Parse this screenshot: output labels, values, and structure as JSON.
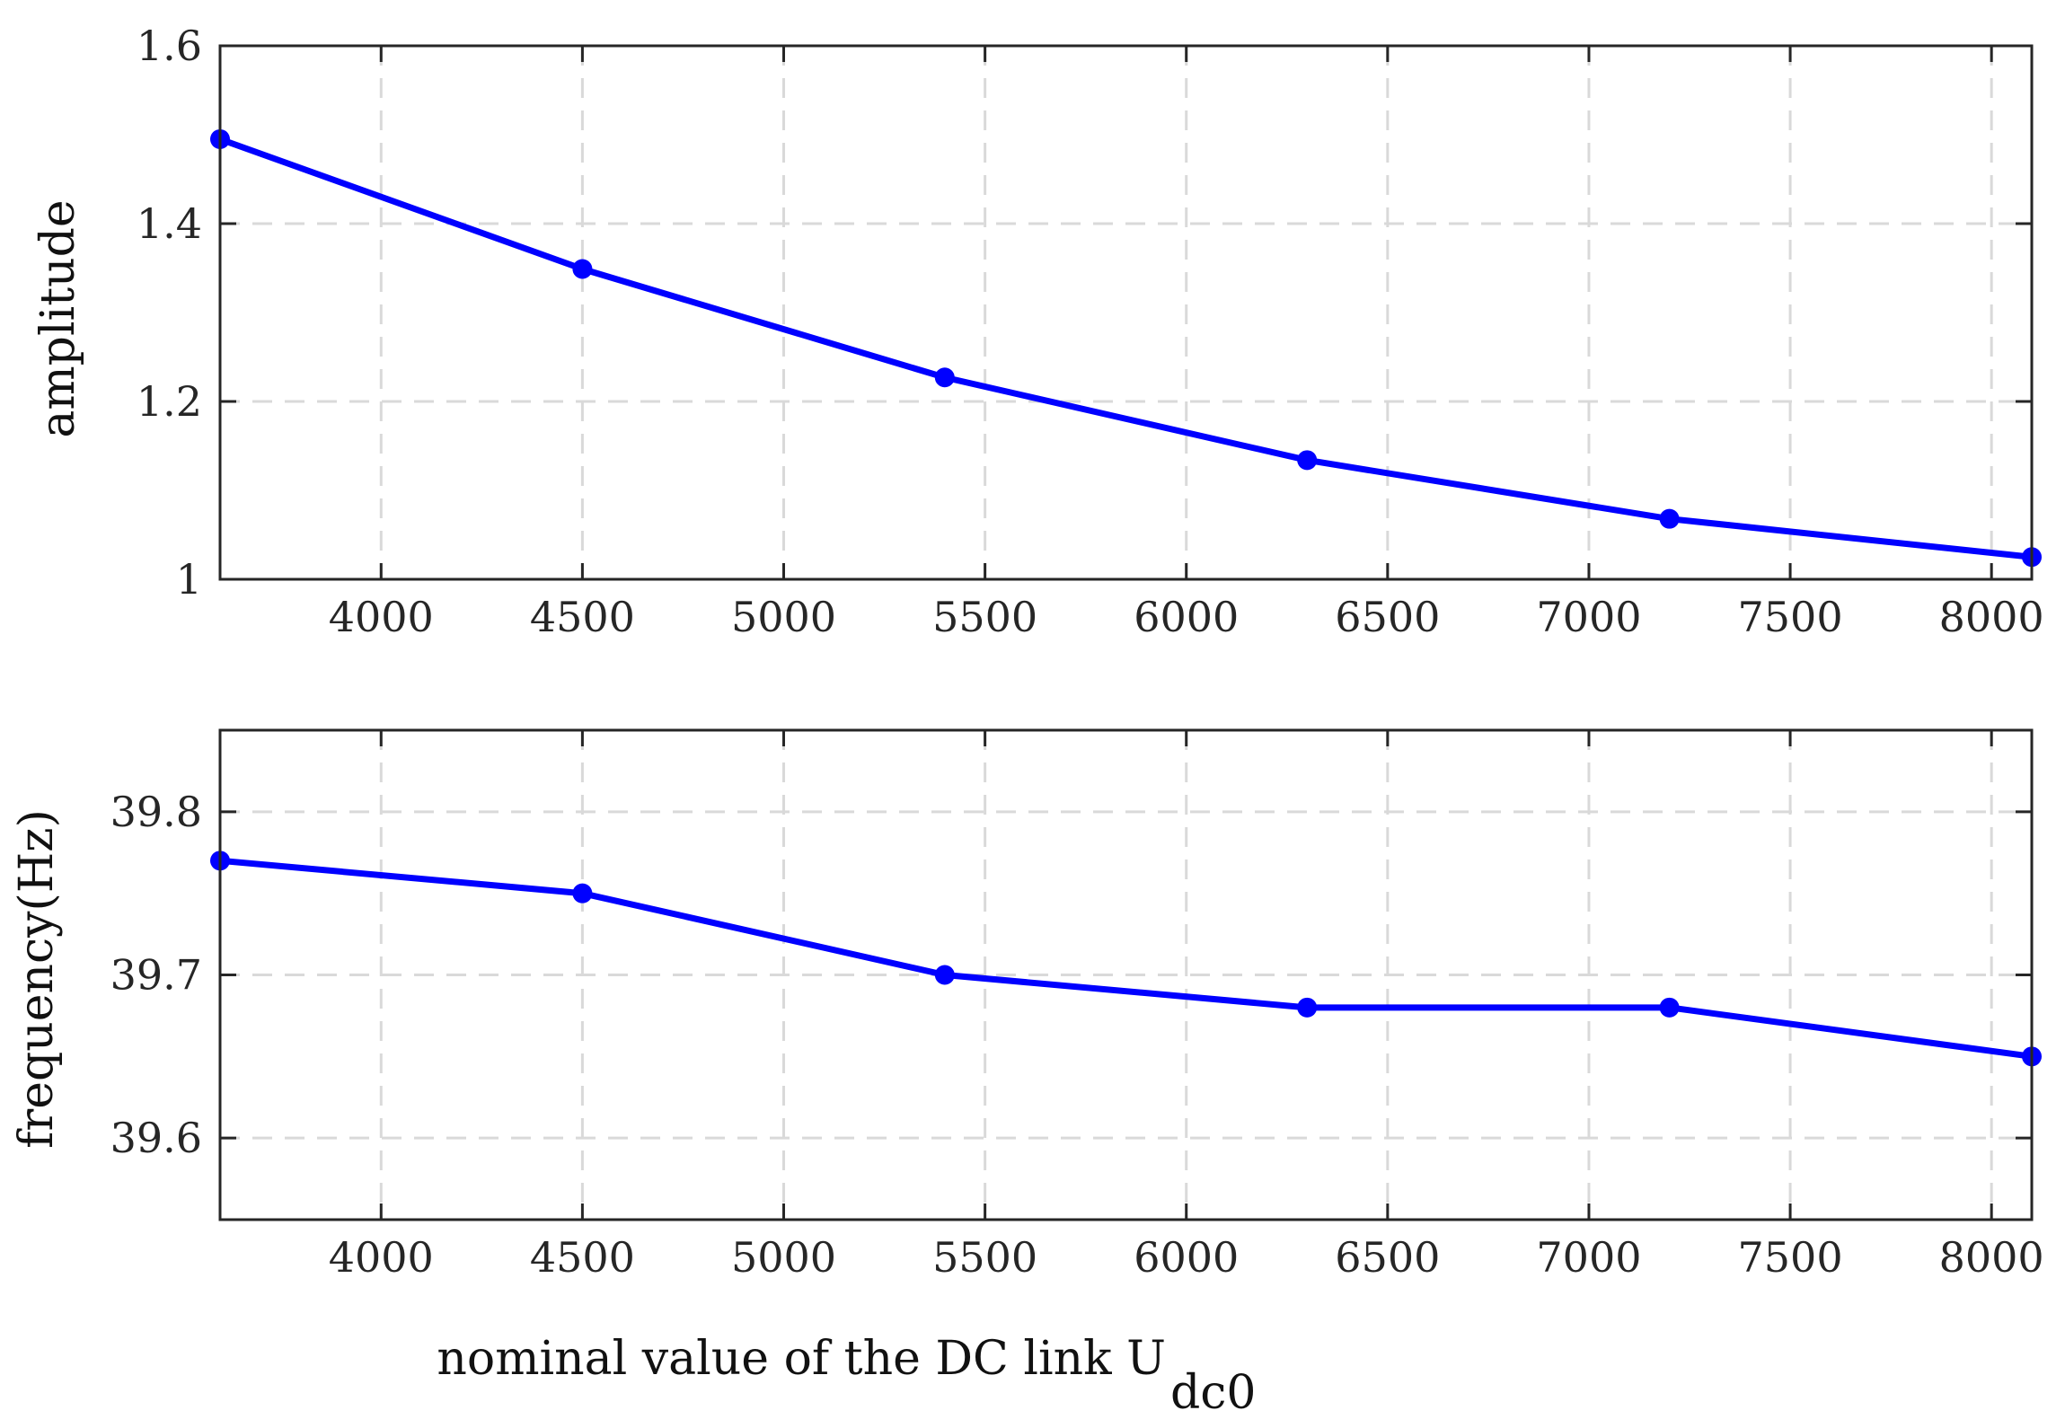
{
  "chart_data": [
    {
      "type": "line",
      "id": "amplitude",
      "title": "",
      "xlabel": "",
      "ylabel": "amplitude",
      "x": [
        3600,
        4500,
        5400,
        6300,
        7200,
        8100
      ],
      "series": [
        {
          "name": "amplitude",
          "color": "#0000ff",
          "values": [
            1.495,
            1.349,
            1.227,
            1.134,
            1.068,
            1.025
          ]
        }
      ],
      "xlim": [
        3600,
        8100
      ],
      "ylim": [
        1.0,
        1.6
      ],
      "xticks": [
        4000,
        4500,
        5000,
        5500,
        6000,
        6500,
        7000,
        7500,
        8000
      ],
      "xtick_labels": [
        "4000",
        "4500",
        "5000",
        "5500",
        "6000",
        "6500",
        "7000",
        "7500",
        "8000"
      ],
      "yticks": [
        1.0,
        1.2,
        1.4,
        1.6
      ],
      "ytick_labels": [
        "1",
        "1.2",
        "1.4",
        "1.6"
      ],
      "grid": true
    },
    {
      "type": "line",
      "id": "frequency",
      "title": "",
      "xlabel": "nominal value of the DC link U",
      "xlabel_subscript": "dc0",
      "ylabel": "frequency(Hz)",
      "x": [
        3600,
        4500,
        5400,
        6300,
        7200,
        8100
      ],
      "series": [
        {
          "name": "frequency",
          "color": "#0000ff",
          "values": [
            39.77,
            39.75,
            39.7,
            39.68,
            39.68,
            39.65
          ]
        }
      ],
      "xlim": [
        3600,
        8100
      ],
      "ylim": [
        39.55,
        39.85
      ],
      "xticks": [
        4000,
        4500,
        5000,
        5500,
        6000,
        6500,
        7000,
        7500,
        8000
      ],
      "xtick_labels": [
        "4000",
        "4500",
        "5000",
        "5500",
        "6000",
        "6500",
        "7000",
        "7500",
        "8000"
      ],
      "yticks": [
        39.6,
        39.7,
        39.8
      ],
      "ytick_labels": [
        "39.6",
        "39.7",
        "39.8"
      ],
      "grid": true
    }
  ]
}
